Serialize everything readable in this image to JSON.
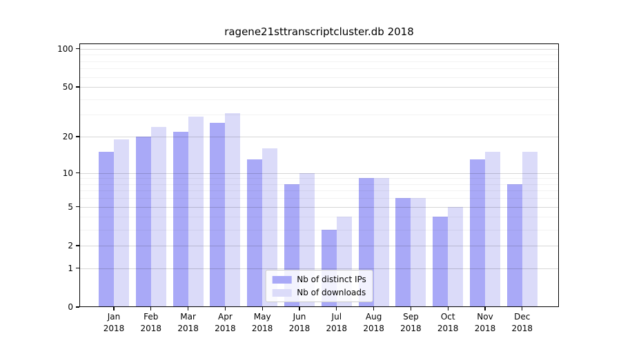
{
  "title": "ragene21sttranscriptcluster.db 2018",
  "chart_data": {
    "type": "bar",
    "title": "ragene21sttranscriptcluster.db 2018",
    "categories": [
      "Jan",
      "Feb",
      "Mar",
      "Apr",
      "May",
      "Jun",
      "Jul",
      "Aug",
      "Sep",
      "Oct",
      "Nov",
      "Dec"
    ],
    "year": "2018",
    "series": [
      {
        "name": "Nb of distinct IPs",
        "color": "#a9a9f7",
        "values": [
          15,
          20,
          22,
          26,
          13,
          8,
          3,
          9,
          6,
          4,
          13,
          8
        ]
      },
      {
        "name": "Nb of downloads",
        "color": "#dbdbf9",
        "values": [
          19,
          24,
          29,
          31,
          16,
          10,
          4,
          9,
          6,
          5,
          15,
          15
        ]
      }
    ],
    "y_axis": {
      "scale": "log1p",
      "ticks": [
        0,
        1,
        2,
        5,
        10,
        20,
        50,
        100
      ],
      "minor_ticks": [
        3,
        4,
        6,
        7,
        8,
        9,
        30,
        40,
        60,
        70,
        80,
        90
      ],
      "max": 110
    },
    "x_axis": {
      "tick_labels_line1": [
        "Jan",
        "Feb",
        "Mar",
        "Apr",
        "May",
        "Jun",
        "Jul",
        "Aug",
        "Sep",
        "Oct",
        "Nov",
        "Dec"
      ],
      "tick_labels_line2": "2018"
    },
    "legend": {
      "position": "bottom-center",
      "entries": [
        "Nb of distinct IPs",
        "Nb of downloads"
      ]
    },
    "grid": "horizontal major and minor, drawn over bars",
    "background": "#ffffff"
  }
}
